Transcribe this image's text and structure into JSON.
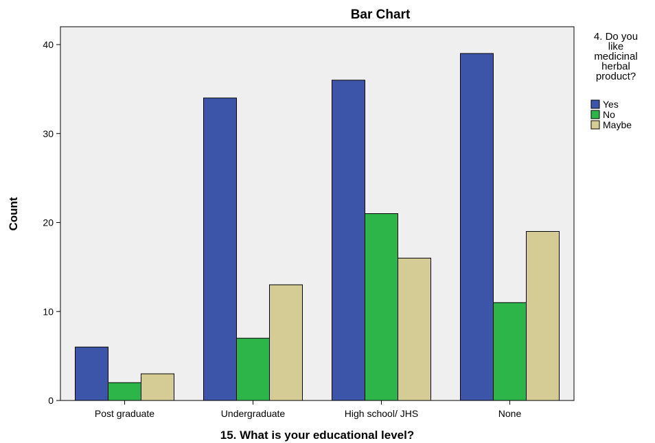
{
  "chart_data": {
    "type": "bar",
    "title": "Bar Chart",
    "xlabel": "15. What is your educational level?",
    "ylabel": "Count",
    "categories": [
      "Post graduate",
      "Undergraduate",
      "High school/ JHS",
      "None"
    ],
    "series": [
      {
        "name": "Yes",
        "values": [
          6,
          34,
          36,
          39
        ],
        "color": "#3d55a8"
      },
      {
        "name": "No",
        "values": [
          2,
          7,
          21,
          11
        ],
        "color": "#2db54a"
      },
      {
        "name": "Maybe",
        "values": [
          3,
          13,
          16,
          19
        ],
        "color": "#d4cc94"
      }
    ],
    "yticks": [
      0,
      10,
      20,
      30,
      40
    ],
    "ylim": [
      0,
      40
    ],
    "grid": false,
    "legend": {
      "title_lines": [
        "4. Do you",
        "like",
        "medicinal",
        "herbal",
        "product?"
      ],
      "position": "right"
    },
    "plot_background": "#efefef"
  }
}
